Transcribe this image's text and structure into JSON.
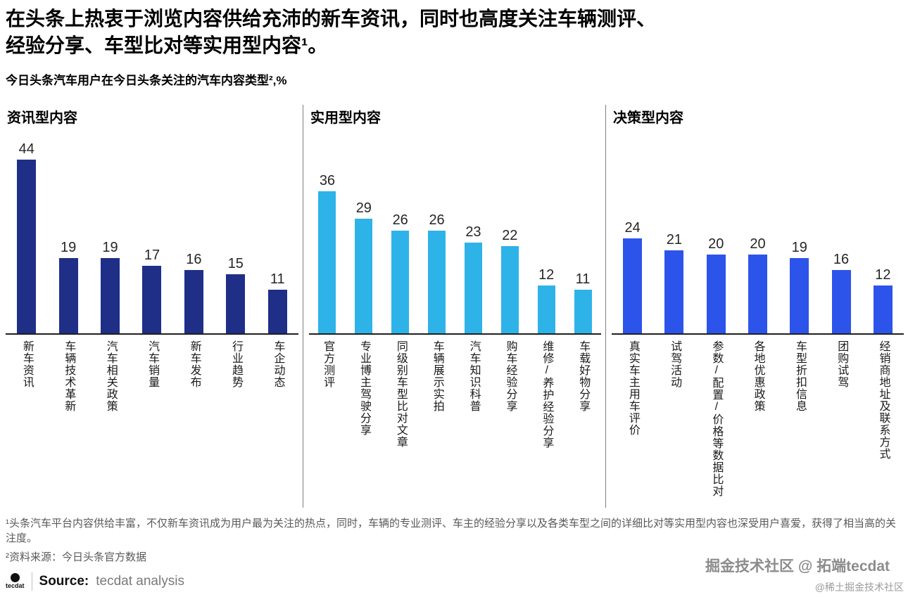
{
  "header": {
    "title_line1": "在头条上热衷于浏览内容供给充沛的新车资讯，同时也高度关注车辆测评、",
    "title_line2": "经验分享、车型比对等实用型内容¹。",
    "subtitle": "今日头条汽车用户在今日头条关注的汽车内容类型²,%"
  },
  "chart_data": [
    {
      "type": "bar",
      "title": "资讯型内容",
      "categories": [
        "新车资讯",
        "车辆技术革新",
        "汽车相关政策",
        "汽车销量",
        "新车发布",
        "行业趋势",
        "车企动态"
      ],
      "values": [
        44,
        19,
        19,
        17,
        16,
        15,
        11
      ],
      "bar_color": "#1f2f87",
      "ylim": [
        0,
        48
      ],
      "legend": "none",
      "grid": false
    },
    {
      "type": "bar",
      "title": "实用型内容",
      "categories": [
        "官方测评",
        "专业博主驾驶分享",
        "同级别车型比对文章",
        "车辆展示实拍",
        "汽车知识科普",
        "购车经验分享",
        "维修/养护经验分享",
        "车载好物分享"
      ],
      "values": [
        36,
        29,
        26,
        26,
        23,
        22,
        12,
        11
      ],
      "bar_color": "#2eb3e8",
      "ylim": [
        0,
        48
      ],
      "legend": "none",
      "grid": false
    },
    {
      "type": "bar",
      "title": "决策型内容",
      "categories": [
        "真实车主用车评价",
        "试驾活动",
        "参数/配置/价格等数据比对",
        "各地优惠政策",
        "车型折扣信息",
        "团购试驾",
        "经销商地址及联系方式"
      ],
      "values": [
        24,
        21,
        20,
        20,
        19,
        16,
        12
      ],
      "bar_color": "#2d54ea",
      "ylim": [
        0,
        48
      ],
      "legend": "none",
      "grid": false
    }
  ],
  "footnotes": {
    "note1": "¹头条汽车平台内容供给丰富，不仅新车资讯成为用户最为关注的热点，同时，车辆的专业测评、车主的经验分享以及各类车型之间的详细比对等实用型内容也深受用户喜爱，获得了相当高的关注度。",
    "note2": "²资料来源：今日头条官方数据"
  },
  "source": {
    "logo_text": "tecdat",
    "label": "Source:",
    "text": "tecdat analysis"
  },
  "watermark": {
    "line1": "掘金技术社区 @ 拓端tecdat",
    "line2": "@稀土掘金技术社区"
  }
}
